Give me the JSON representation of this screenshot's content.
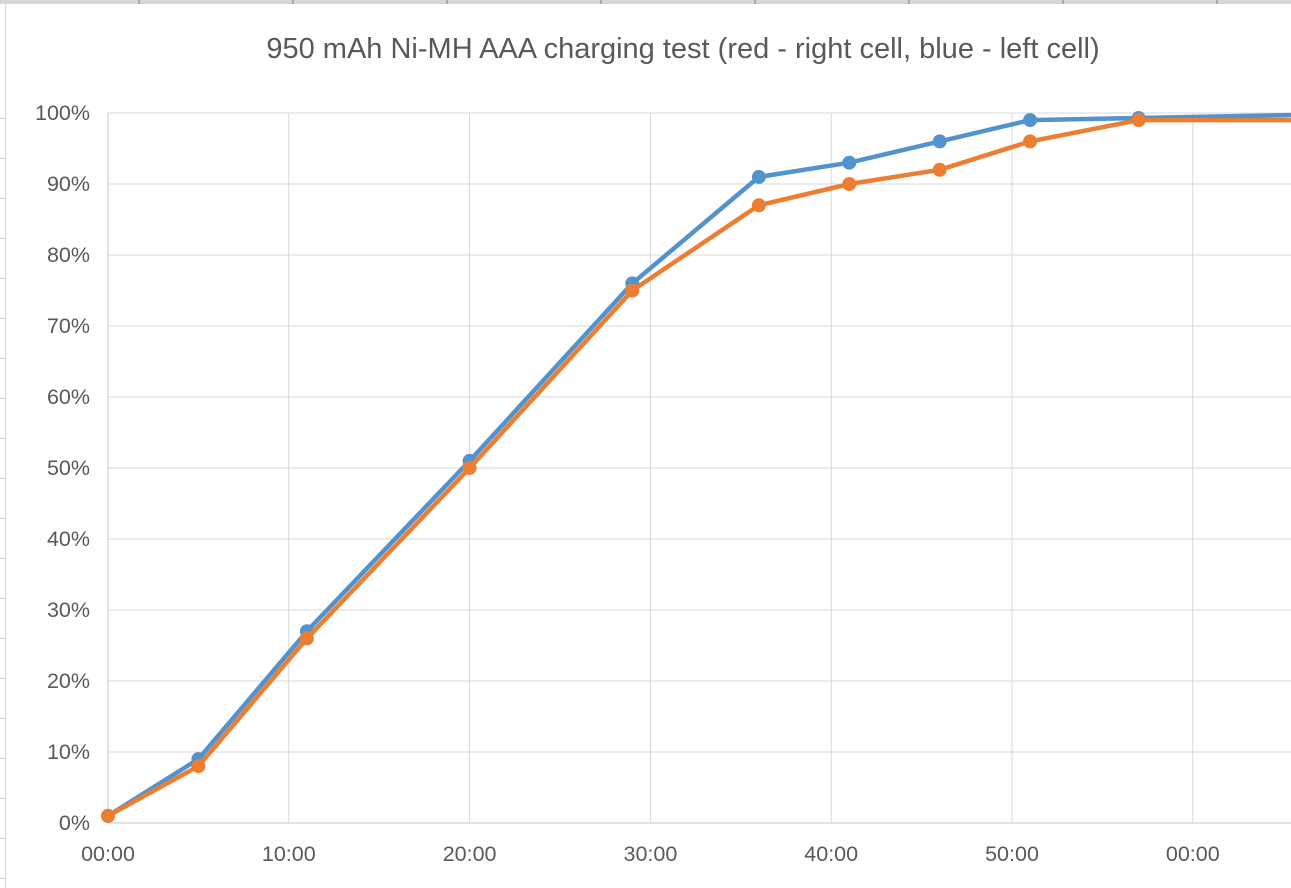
{
  "chart_data": {
    "type": "line",
    "title": "950 mAh Ni-MH AAA charging test (red - right cell, blue - left cell)",
    "legend_position": "none",
    "grid": true,
    "x_axis": {
      "tick_labels": [
        "00:00",
        "10:00",
        "20:00",
        "30:00",
        "40:00",
        "50:00",
        "00:00"
      ],
      "tick_minutes": [
        0,
        10,
        20,
        30,
        40,
        50,
        60
      ],
      "visible_range_minutes": [
        0,
        65.5
      ]
    },
    "y_axis": {
      "tick_labels": [
        "0%",
        "10%",
        "20%",
        "30%",
        "40%",
        "50%",
        "60%",
        "70%",
        "80%",
        "90%",
        "100%"
      ],
      "tick_percent": [
        0,
        10,
        20,
        30,
        40,
        50,
        60,
        70,
        80,
        90,
        100
      ],
      "range_percent": [
        0,
        100
      ]
    },
    "series": [
      {
        "name": "left cell (blue)",
        "color": "#5293cd",
        "marker": "circle",
        "points": {
          "minutes": [
            0,
            5,
            11,
            20,
            29,
            36,
            41,
            46,
            51,
            57
          ],
          "percent": [
            1,
            9,
            27,
            51,
            76,
            91,
            93,
            96,
            99,
            99.3
          ]
        },
        "extends_to": {
          "minutes": 65.5,
          "percent": 99.7
        }
      },
      {
        "name": "right cell (red/orange)",
        "color": "#ed7d31",
        "marker": "circle",
        "points": {
          "minutes": [
            0,
            5,
            11,
            20,
            29,
            36,
            41,
            46,
            51,
            57
          ],
          "percent": [
            1,
            8,
            26,
            50,
            75,
            87,
            90,
            92,
            96,
            99
          ]
        },
        "extends_to": {
          "minutes": 65.5,
          "percent": 99.0
        }
      }
    ],
    "colors": {
      "gridline": "#d9d9d9",
      "axis_line": "#c6c6c6",
      "label_text": "#595959"
    }
  }
}
